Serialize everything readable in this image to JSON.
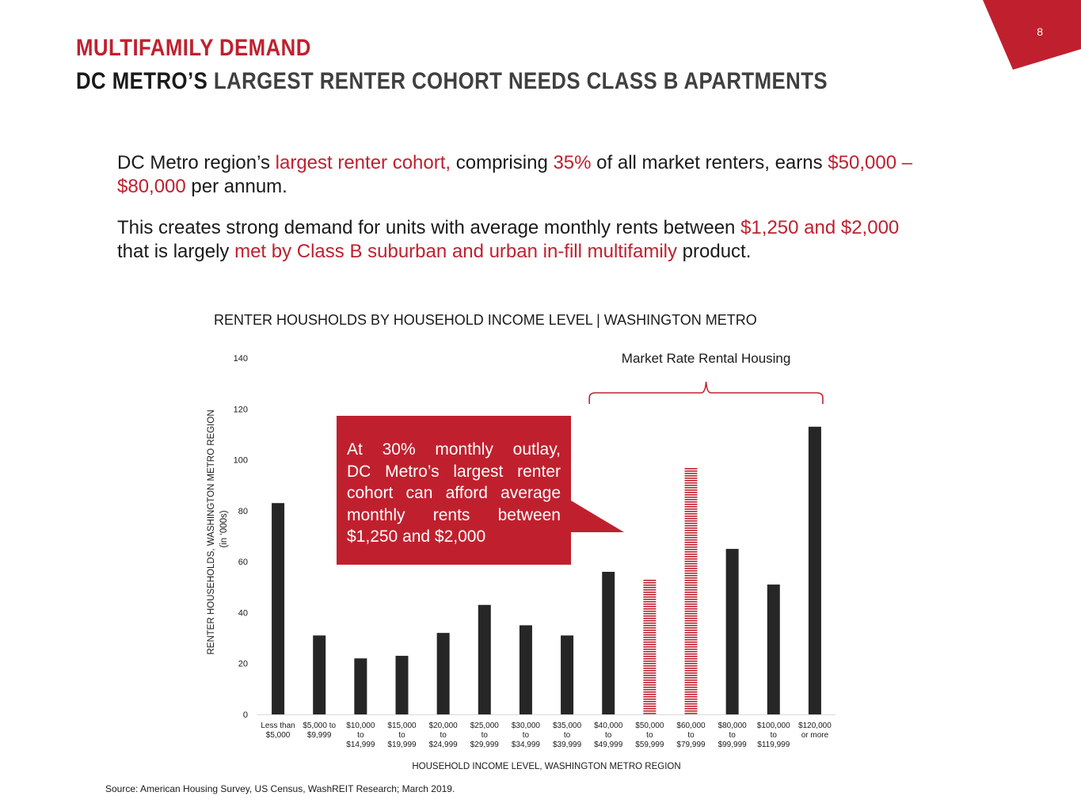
{
  "slide": {
    "page_number": "8",
    "title": "MULTIFAMILY DEMAND",
    "subtitle_strong": "DC METRO’S",
    "subtitle_rest": " LARGEST RENTER COHORT NEEDS CLASS B APARTMENTS"
  },
  "paragraph1": {
    "t1": "DC Metro region’s ",
    "t2": "largest renter cohort,",
    "t3": " comprising ",
    "t4": "35%",
    "t5": " of all market renters, earns ",
    "t6": "$50,000 – $80,000",
    "t7": " per annum."
  },
  "paragraph2": {
    "t1": "This creates strong demand for units with average monthly rents between ",
    "t2": "$1,250 and $2,000",
    "t3": " that is largely ",
    "t4": "met by Class B suburban and urban in-fill multifamily",
    "t5": " product."
  },
  "callout": {
    "line1": "At 30% monthly outlay,",
    "line2": "DC Metro’s largest renter",
    "line3": "cohort can afford average",
    "line4": "monthly rents between",
    "line5": "$1,250 and $2,000"
  },
  "source": "Source: American Housing Survey, US Census, WashREIT Research; March 2019.",
  "colors": {
    "brand_red": "#c0202e",
    "bar_dark": "#262626",
    "bar_highlight": "#c0202e"
  },
  "chart_data": {
    "type": "bar",
    "title": "RENTER HOUSHOLDS BY HOUSEHOLD INCOME LEVEL | WASHINGTON METRO",
    "xlabel": "HOUSEHOLD INCOME LEVEL, WASHINGTON METRO REGION",
    "ylabel": "RENTER HOUSEHOLDS, WASHINGTON METRO REGION",
    "ylabel_unit": "(in ‘000s)",
    "ylim": [
      0,
      140
    ],
    "yticks": [
      0,
      20,
      40,
      60,
      80,
      100,
      120,
      140
    ],
    "grid": false,
    "categories": [
      [
        "Less than",
        "$5,000"
      ],
      [
        "$5,000 to",
        "$9,999"
      ],
      [
        "$10,000",
        "to",
        "$14,999"
      ],
      [
        "$15,000",
        "to",
        "$19,999"
      ],
      [
        "$20,000",
        "to",
        "$24,999"
      ],
      [
        "$25,000",
        "to",
        "$29,999"
      ],
      [
        "$30,000",
        "to",
        "$34,999"
      ],
      [
        "$35,000",
        "to",
        "$39,999"
      ],
      [
        "$40,000",
        "to",
        "$49,999"
      ],
      [
        "$50,000",
        "to",
        "$59,999"
      ],
      [
        "$60,000",
        "to",
        "$79,999"
      ],
      [
        "$80,000",
        "to",
        "$99,999"
      ],
      [
        "$100,000",
        "to",
        "$119,999"
      ],
      [
        "$120,000",
        "or more"
      ]
    ],
    "values": [
      83,
      31,
      22,
      23,
      32,
      43,
      35,
      31,
      56,
      53,
      97,
      65,
      51,
      113
    ],
    "highlighted": [
      9,
      10
    ],
    "bracket": {
      "label": "Market Rate Rental Housing",
      "from_category": 8,
      "to_category": 13
    }
  }
}
